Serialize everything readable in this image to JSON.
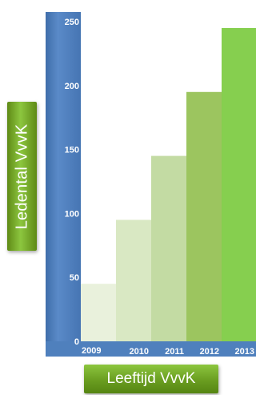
{
  "chart_data": {
    "type": "bar",
    "categories": [
      "2009",
      "2010",
      "2011",
      "2012",
      "2013"
    ],
    "values": [
      45,
      95,
      145,
      195,
      245
    ],
    "title": "",
    "xlabel": "Leeftijd VvvK",
    "ylabel": "Ledental VvvK",
    "ylim": [
      0,
      250
    ],
    "yticks": [
      0,
      50,
      100,
      150,
      200,
      250
    ],
    "grid": false,
    "legend": "none",
    "colors": {
      "axis_band": "#4f80bd",
      "bars": [
        "#e9f1dc",
        "#d9e8c3",
        "#c3dba3",
        "#9cc55f",
        "#86cf4f"
      ],
      "label_box": "#76b52c"
    }
  }
}
